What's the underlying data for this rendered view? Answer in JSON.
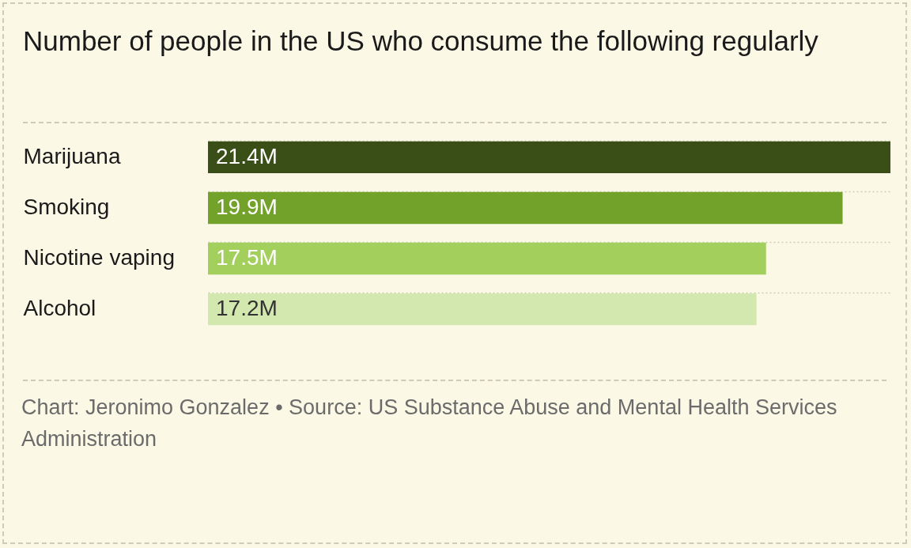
{
  "chart_data": {
    "type": "bar",
    "orientation": "horizontal",
    "title": "Number of people in the US who consume the following regularly",
    "categories": [
      "Marijuana",
      "Smoking",
      "Nicotine vaping",
      "Alcohol"
    ],
    "values": [
      21.4,
      19.9,
      17.5,
      17.2
    ],
    "colors": [
      "#3a4f18",
      "#72a22a",
      "#a3cf5c",
      "#d3e8ae"
    ],
    "value_labels": [
      "21.4M",
      "19.9M",
      "17.5M",
      "17.2M"
    ],
    "grid": "y",
    "annotations": [
      "Chart: Jeronimo Gonzalez • Source: US Substance Abuse and Mental Health Services Administration"
    ]
  }
}
